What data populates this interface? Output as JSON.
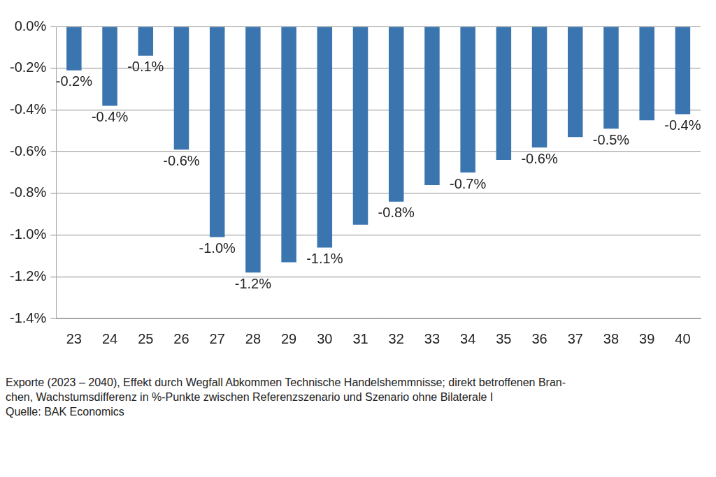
{
  "chart_data": {
    "type": "bar",
    "caption": [
      "Exporte (2023 – 2040), Effekt durch Wegfall Abkommen Technische Handelshemmnisse; direkt betroffenen Bran-",
      "chen, Wachstumsdifferenz in %-Punkte zwischen Referenzszenario und Szenario ohne Bilaterale I"
    ],
    "source": "Quelle: BAK Economics",
    "categories": [
      "23",
      "24",
      "25",
      "26",
      "27",
      "28",
      "29",
      "30",
      "31",
      "32",
      "33",
      "34",
      "35",
      "36",
      "37",
      "38",
      "39",
      "40"
    ],
    "values": [
      -0.21,
      -0.38,
      -0.14,
      -0.59,
      -1.01,
      -1.18,
      -1.13,
      -1.06,
      -0.95,
      -0.84,
      -0.76,
      -0.7,
      -0.64,
      -0.58,
      -0.53,
      -0.49,
      -0.45,
      -0.42
    ],
    "value_labels": [
      "-0.2%",
      "-0.4%",
      "-0.1%",
      "-0.6%",
      "-1.0%",
      "-1.2%",
      null,
      "-1.1%",
      null,
      "-0.8%",
      null,
      "-0.7%",
      null,
      "-0.6%",
      null,
      "-0.5%",
      null,
      "-0.4%"
    ],
    "data_labels": true,
    "color": "#3b75af",
    "ylim": [
      -1.4,
      0
    ],
    "yticks": [
      {
        "value": 0,
        "label": "0.0%"
      },
      {
        "value": -0.2,
        "label": "-0.2%"
      },
      {
        "value": -0.4,
        "label": "-0.4%"
      },
      {
        "value": -0.6,
        "label": "-0.6%"
      },
      {
        "value": -0.8,
        "label": "-0.8%"
      },
      {
        "value": -1.0,
        "label": "-1.0%"
      },
      {
        "value": -1.2,
        "label": "-1.2%"
      },
      {
        "value": -1.4,
        "label": "-1.4%"
      }
    ],
    "grid": true
  }
}
